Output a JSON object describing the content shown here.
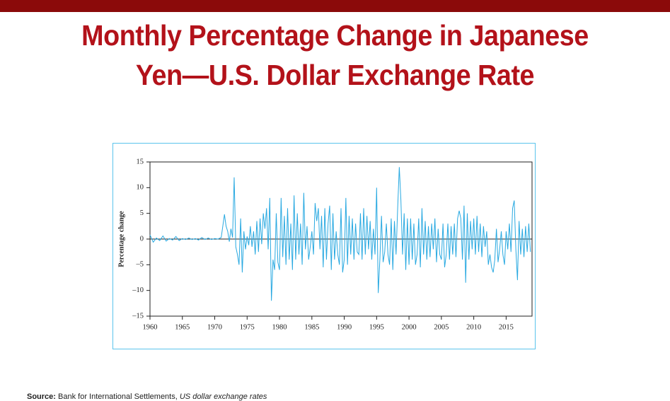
{
  "chart_data": {
    "type": "line",
    "title": "Monthly Percentage Change in Japanese Yen—U.S. Dollar Exchange Rate",
    "y_label": "Percentage change",
    "source": {
      "label": "Source:",
      "text": "Bank for International Settlements,",
      "italic": "US dollar exchange rates"
    },
    "color": "#29a9e1",
    "xlim": [
      1960,
      2019
    ],
    "xticks": [
      1960,
      1965,
      1970,
      1975,
      1980,
      1985,
      1990,
      1995,
      2000,
      2005,
      2010,
      2015
    ],
    "ylim": [
      -15,
      15
    ],
    "yticks": [
      {
        "value": -15,
        "label": "–15"
      },
      {
        "value": -10,
        "label": "–10"
      },
      {
        "value": -5,
        "label": "–5"
      },
      0,
      5,
      10,
      15
    ],
    "x": [
      1960,
      1960.5,
      1961,
      1961.5,
      1962,
      1962.5,
      1963,
      1963.5,
      1964,
      1964.5,
      1965,
      1965.5,
      1966,
      1966.5,
      1967,
      1967.5,
      1968,
      1968.5,
      1969,
      1969.5,
      1970,
      1970.5,
      1971,
      1971.5,
      1971.75,
      1972,
      1972.25,
      1972.5,
      1972.75,
      1973,
      1973.25,
      1973.5,
      1973.75,
      1974,
      1974.25,
      1974.5,
      1974.75,
      1975,
      1975.25,
      1975.5,
      1975.75,
      1976,
      1976.25,
      1976.5,
      1976.75,
      1977,
      1977.25,
      1977.5,
      1977.75,
      1978,
      1978.25,
      1978.5,
      1978.75,
      1979,
      1979.25,
      1979.5,
      1979.75,
      1980,
      1980.25,
      1980.5,
      1980.75,
      1981,
      1981.25,
      1981.5,
      1981.75,
      1982,
      1982.25,
      1982.5,
      1982.75,
      1983,
      1983.25,
      1983.5,
      1983.75,
      1984,
      1984.25,
      1984.5,
      1984.75,
      1985,
      1985.25,
      1985.5,
      1985.75,
      1986,
      1986.25,
      1986.5,
      1986.75,
      1987,
      1987.25,
      1987.5,
      1987.75,
      1988,
      1988.25,
      1988.5,
      1988.75,
      1989,
      1989.25,
      1989.5,
      1989.75,
      1990,
      1990.25,
      1990.5,
      1990.75,
      1991,
      1991.25,
      1991.5,
      1991.75,
      1992,
      1992.25,
      1992.5,
      1992.75,
      1993,
      1993.25,
      1993.5,
      1993.75,
      1994,
      1994.25,
      1994.5,
      1994.75,
      1995,
      1995.25,
      1995.5,
      1995.75,
      1996,
      1996.25,
      1996.5,
      1996.75,
      1997,
      1997.25,
      1997.5,
      1997.75,
      1998,
      1998.25,
      1998.5,
      1998.75,
      1999,
      1999.25,
      1999.5,
      1999.75,
      2000,
      2000.25,
      2000.5,
      2000.75,
      2001,
      2001.25,
      2001.5,
      2001.75,
      2002,
      2002.25,
      2002.5,
      2002.75,
      2003,
      2003.25,
      2003.5,
      2003.75,
      2004,
      2004.25,
      2004.5,
      2004.75,
      2005,
      2005.25,
      2005.5,
      2005.75,
      2006,
      2006.25,
      2006.5,
      2006.75,
      2007,
      2007.25,
      2007.5,
      2007.75,
      2008,
      2008.25,
      2008.5,
      2008.75,
      2009,
      2009.25,
      2009.5,
      2009.75,
      2010,
      2010.25,
      2010.5,
      2010.75,
      2011,
      2011.25,
      2011.5,
      2011.75,
      2012,
      2012.25,
      2012.5,
      2012.75,
      2013,
      2013.25,
      2013.5,
      2013.75,
      2014,
      2014.25,
      2014.5,
      2014.75,
      2015,
      2015.25,
      2015.5,
      2015.75,
      2016,
      2016.25,
      2016.5,
      2016.75,
      2017,
      2017.25,
      2017.5,
      2017.75,
      2018,
      2018.25,
      2018.5,
      2018.75
    ],
    "values": [
      0.8,
      -0.6,
      0.2,
      -0.3,
      0.6,
      -0.4,
      0.1,
      -0.2,
      0.5,
      -0.3,
      0.1,
      -0.1,
      0.2,
      -0.1,
      0.1,
      -0.2,
      0.3,
      -0.1,
      0.2,
      -0.1,
      0.1,
      0,
      0.3,
      4.8,
      2.5,
      1.5,
      -0.5,
      2,
      0.3,
      12,
      -1.5,
      -3,
      -5,
      4,
      -6.5,
      1.5,
      -2,
      0.5,
      -1.2,
      2.5,
      -1.5,
      1.5,
      -3,
      3.5,
      -2.5,
      4,
      -1,
      5,
      2,
      6,
      -2,
      8,
      -12,
      -4,
      -6,
      5,
      -4.5,
      -6,
      8,
      -3.5,
      4.5,
      -5,
      6,
      -4,
      3,
      -6,
      8.5,
      -4,
      5,
      -3,
      3,
      -5,
      9,
      -2,
      2.5,
      -4,
      -1.5,
      1.5,
      -3,
      7,
      3.5,
      6,
      -2,
      4.5,
      -5.5,
      6,
      -4,
      3,
      6.5,
      -6,
      5,
      -4,
      1.5,
      -3,
      -5,
      6,
      -6.5,
      -4,
      8,
      -5,
      4.5,
      -3,
      4,
      -4,
      3,
      -2.5,
      -3,
      5,
      -4,
      6,
      -3,
      4.5,
      -2,
      3.5,
      -4,
      2,
      -3,
      10,
      -10.5,
      -4,
      4.5,
      -4.5,
      -2.5,
      3,
      -3,
      -5,
      4,
      -6,
      3.5,
      -3,
      6,
      14,
      7.5,
      -3,
      5,
      -6,
      4,
      -5,
      4,
      -4,
      3,
      -5,
      -3,
      4,
      -5.5,
      6,
      -3,
      3.5,
      -4,
      2.5,
      -3.5,
      3,
      -2,
      4,
      -4.5,
      2,
      -3,
      -4,
      3,
      -5.5,
      -3,
      3,
      -4,
      2.5,
      -3,
      3,
      -3.5,
      4,
      5.5,
      4,
      -4,
      6.5,
      -8.5,
      5,
      -4,
      3.5,
      -2,
      4,
      -3,
      4.5,
      -2.5,
      3,
      -3.5,
      2.5,
      -1.5,
      1.5,
      -5,
      -3,
      -5.5,
      -6.5,
      -4,
      2,
      -4.5,
      -2,
      1.5,
      -3,
      -5,
      1.5,
      -2,
      3,
      -2.5,
      6,
      7.5,
      -2,
      -8,
      3.5,
      -3,
      2,
      -3.5,
      2.5,
      -2.5,
      3,
      -2.5
    ]
  }
}
